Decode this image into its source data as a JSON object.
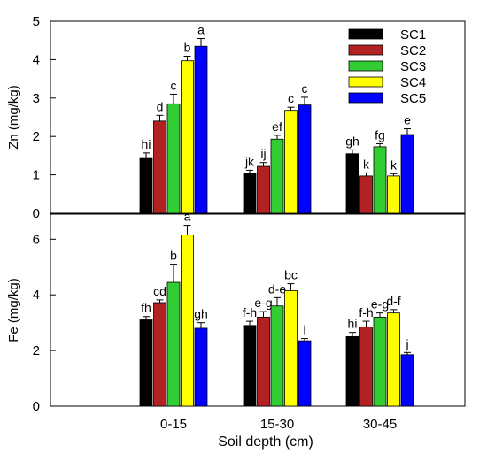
{
  "chart_data": {
    "type": "bar",
    "xlabel": "Soil depth (cm)",
    "categories": [
      "0-15",
      "15-30",
      "30-45"
    ],
    "legend": {
      "placement": "top-right",
      "entries": [
        "SC1",
        "SC2",
        "SC3",
        "SC4",
        "SC5"
      ]
    },
    "colors": {
      "SC1": "#000000",
      "SC2": "#b22222",
      "SC3": "#32cd32",
      "SC4": "#ffff00",
      "SC5": "#0000ff"
    },
    "panels": [
      {
        "id": "zn",
        "ylabel": "Zn (mg/kg)",
        "ylim": [
          0,
          5
        ],
        "yticks": [
          "0",
          "1",
          "2",
          "3",
          "4",
          "5"
        ],
        "series": [
          {
            "name": "SC1",
            "values": [
              1.45,
              1.05,
              1.55
            ],
            "errors": [
              0.12,
              0.07,
              0.1
            ],
            "letters": [
              "hi",
              "jk",
              "gh"
            ]
          },
          {
            "name": "SC2",
            "values": [
              2.4,
              1.22,
              0.97
            ],
            "errors": [
              0.15,
              0.1,
              0.08
            ],
            "letters": [
              "d",
              "ij",
              "k"
            ]
          },
          {
            "name": "SC3",
            "values": [
              2.85,
              1.93,
              1.73
            ],
            "errors": [
              0.25,
              0.1,
              0.08
            ],
            "letters": [
              "c",
              "ef",
              "fg"
            ]
          },
          {
            "name": "SC4",
            "values": [
              3.97,
              2.68,
              0.97
            ],
            "errors": [
              0.12,
              0.08,
              0.06
            ],
            "letters": [
              "b",
              "c",
              "k"
            ]
          },
          {
            "name": "SC5",
            "values": [
              4.35,
              2.82,
              2.05
            ],
            "errors": [
              0.2,
              0.2,
              0.15
            ],
            "letters": [
              "a",
              "c",
              "e"
            ]
          }
        ]
      },
      {
        "id": "fe",
        "ylabel": "Fe (mg/kg)",
        "ylim": [
          0,
          6.9
        ],
        "yticks": [
          "0",
          "2",
          "4",
          "6"
        ],
        "series": [
          {
            "name": "SC1",
            "values": [
              3.1,
              2.9,
              2.5
            ],
            "errors": [
              0.12,
              0.15,
              0.15
            ],
            "letters": [
              "fh",
              "f-h",
              "hi"
            ]
          },
          {
            "name": "SC2",
            "values": [
              3.72,
              3.2,
              2.85
            ],
            "errors": [
              0.1,
              0.2,
              0.2
            ],
            "letters": [
              "cd",
              "e-g",
              "f-h"
            ]
          },
          {
            "name": "SC3",
            "values": [
              4.45,
              3.6,
              3.2
            ],
            "errors": [
              0.65,
              0.3,
              0.15
            ],
            "letters": [
              "b",
              "d-e",
              "e-g"
            ]
          },
          {
            "name": "SC4",
            "values": [
              6.15,
              4.15,
              3.35
            ],
            "errors": [
              0.35,
              0.25,
              0.12
            ],
            "letters": [
              "a",
              "bc",
              "d-f"
            ]
          },
          {
            "name": "SC5",
            "values": [
              2.8,
              2.35,
              1.85
            ],
            "errors": [
              0.2,
              0.08,
              0.08
            ],
            "letters": [
              "gh",
              "i",
              "j"
            ]
          }
        ]
      }
    ]
  }
}
